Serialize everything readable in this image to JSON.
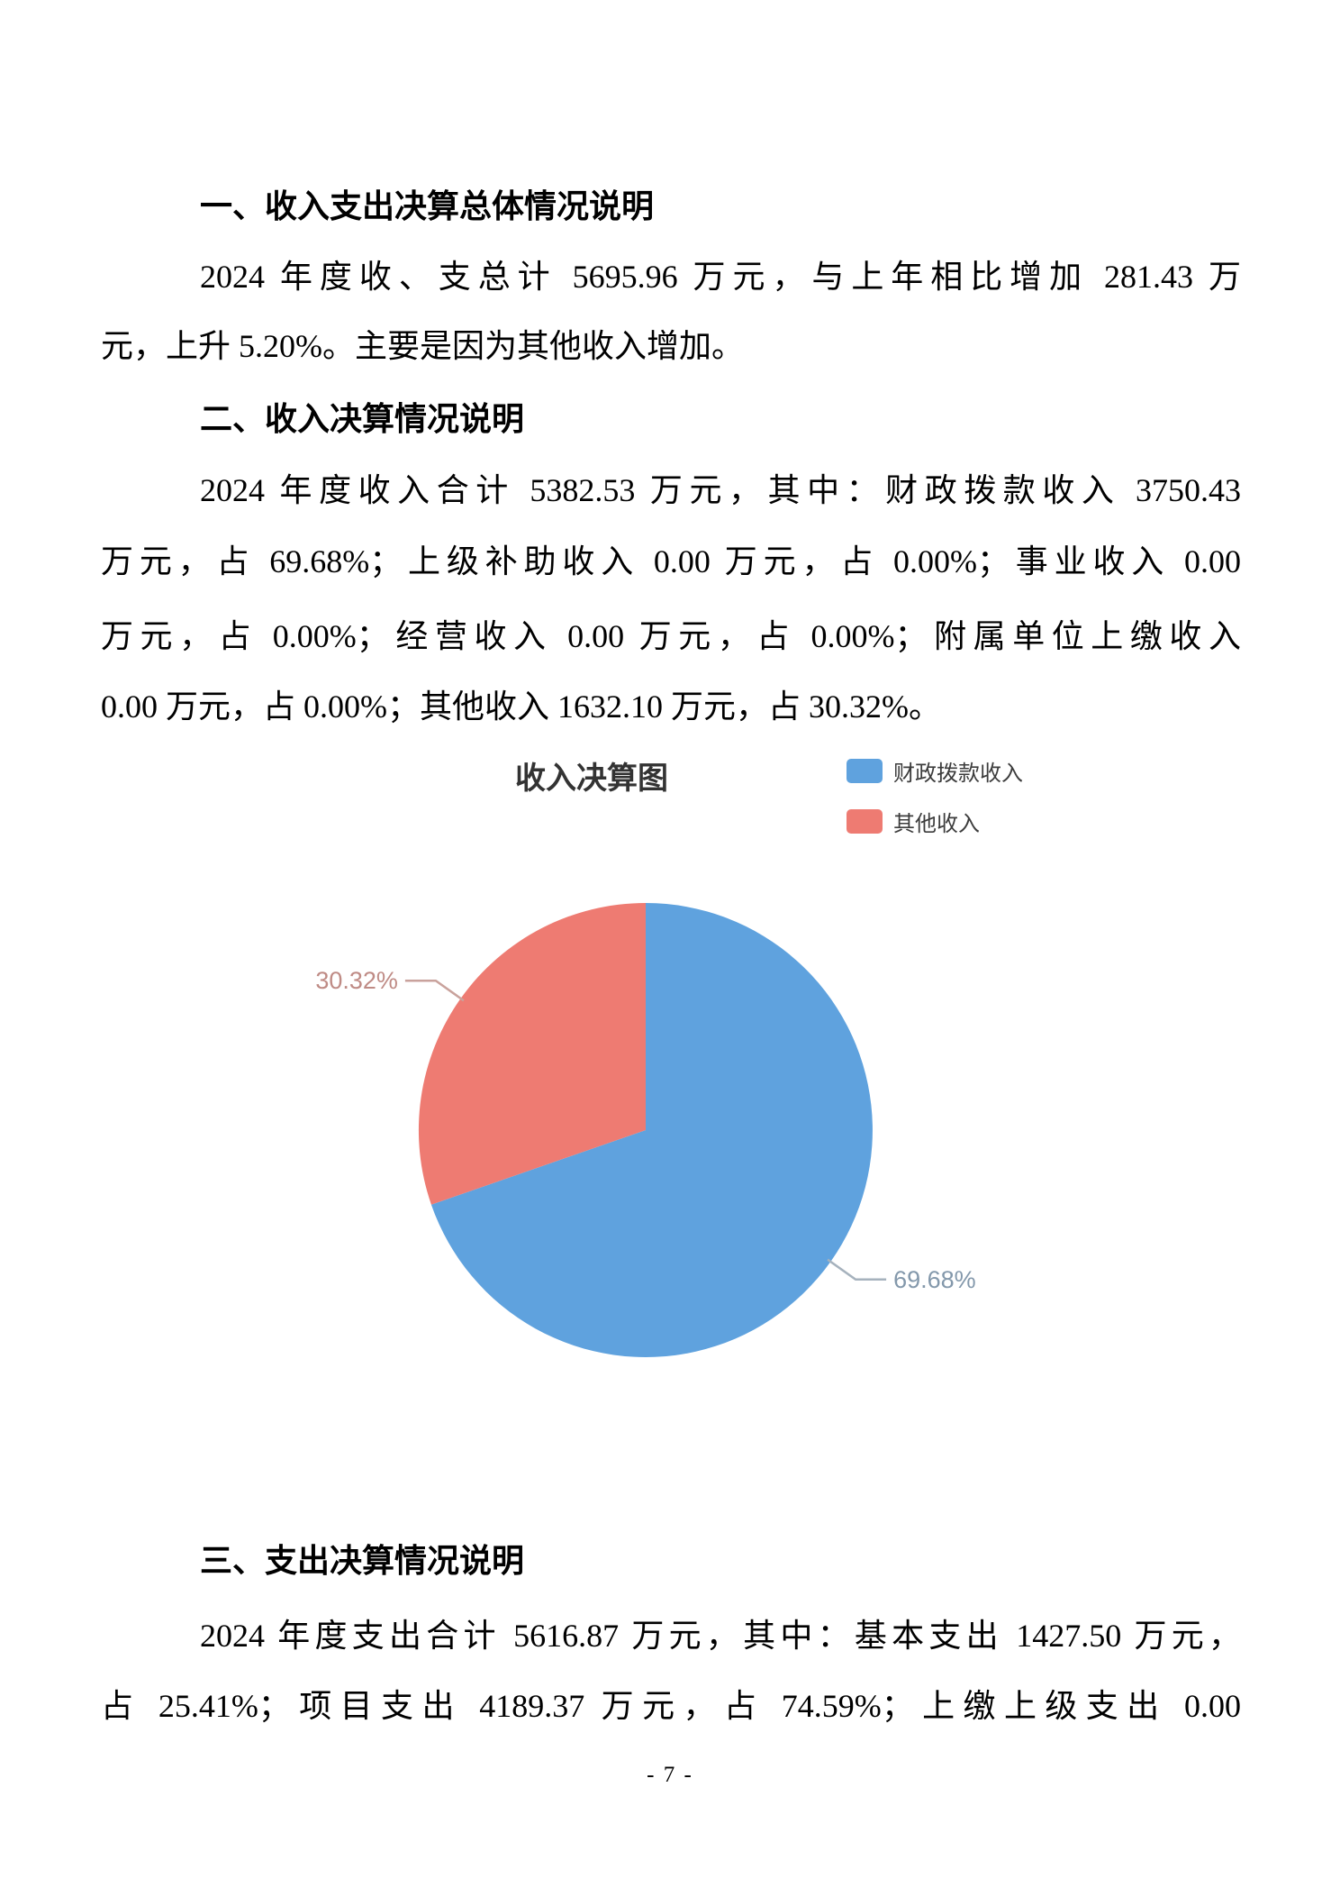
{
  "document": {
    "page_number": "- 7 -",
    "sections": [
      {
        "heading": "一、收入支出决算总体情况说明",
        "lines": [
          "2024 年度收、支总计 5695.96 万元，与上年相比增加 281.43 万",
          "元，上升 5.20%。主要是因为其他收入增加。"
        ]
      },
      {
        "heading": "二、收入决算情况说明",
        "lines": [
          "2024 年度收入合计 5382.53 万元，其中：财政拨款收入 3750.43",
          "万元，占 69.68%；上级补助收入 0.00 万元，占 0.00%；事业收入 0.00",
          "万元，占 0.00%；经营收入 0.00 万元，占 0.00%；附属单位上缴收入",
          "0.00 万元，占 0.00%；其他收入 1632.10 万元，占 30.32%。"
        ]
      },
      {
        "heading": "三、支出决算情况说明",
        "lines": [
          "2024 年度支出合计 5616.87 万元，其中：基本支出 1427.50 万元，",
          "占 25.41%；项目支出 4189.37 万元，占 74.59%；上缴上级支出 0.00"
        ]
      }
    ]
  },
  "chart_data": {
    "type": "pie",
    "title": "收入决算图",
    "labels": [
      "财政拨款收入",
      "其他收入"
    ],
    "values": [
      69.68,
      30.32
    ],
    "unit": "percent",
    "slice_label_texts": [
      "69.68%",
      "30.32%"
    ],
    "colors": [
      "#5fa2de",
      "#ee7b72"
    ],
    "data_label_colors": [
      "#8398ab",
      "#bf8b85"
    ],
    "leader_line_colors": [
      "#a6b2bd",
      "#c9a29c"
    ],
    "legend_position": "top-right",
    "start_angle": 90,
    "clockwise": true
  }
}
